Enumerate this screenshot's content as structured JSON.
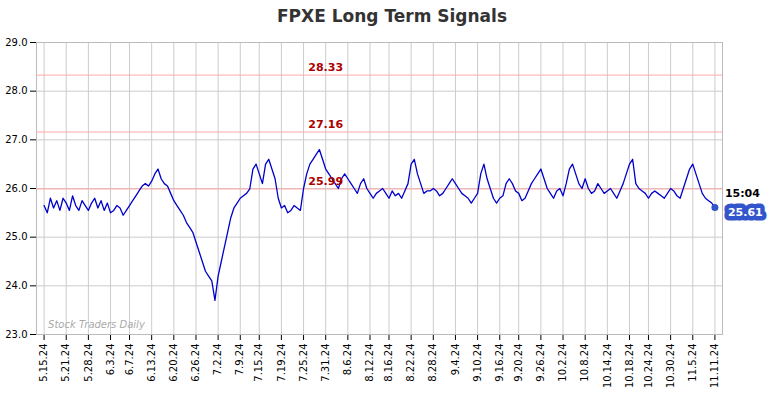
{
  "chart_data": {
    "type": "line",
    "title": "FPXE Long Term Signals",
    "categories": [
      "5.15.24",
      null,
      null,
      null,
      null,
      null,
      null,
      "5.21.24",
      null,
      null,
      null,
      null,
      null,
      null,
      "5.28.24",
      null,
      null,
      null,
      null,
      null,
      null,
      "6.3.24",
      null,
      null,
      null,
      null,
      null,
      "6.7.24",
      null,
      null,
      null,
      null,
      null,
      null,
      "6.13.24",
      null,
      null,
      null,
      null,
      null,
      null,
      "6.20.24",
      null,
      null,
      null,
      null,
      null,
      null,
      "6.26.24",
      null,
      null,
      null,
      null,
      null,
      null,
      "7.2.24",
      null,
      null,
      null,
      null,
      null,
      null,
      "7.9.24",
      null,
      null,
      null,
      null,
      null,
      "7.15.24",
      null,
      null,
      null,
      null,
      null,
      null,
      "7.19.24",
      null,
      null,
      null,
      null,
      null,
      null,
      "7.25.24",
      null,
      null,
      null,
      null,
      null,
      null,
      "7.31.24",
      null,
      null,
      null,
      null,
      null,
      null,
      "8.6.24",
      null,
      null,
      null,
      null,
      null,
      null,
      "8.12.24",
      null,
      null,
      null,
      null,
      null,
      "8.16.24",
      null,
      null,
      null,
      null,
      null,
      null,
      "8.22.24",
      null,
      null,
      null,
      null,
      null,
      null,
      "8.28.24",
      null,
      null,
      null,
      null,
      null,
      null,
      "9.4.24",
      null,
      null,
      null,
      null,
      null,
      null,
      "9.10.24",
      null,
      null,
      null,
      null,
      null,
      null,
      "9.16.24",
      null,
      null,
      null,
      null,
      null,
      "9.20.24",
      null,
      null,
      null,
      null,
      null,
      null,
      "9.26.24",
      null,
      null,
      null,
      null,
      null,
      null,
      "10.2.24",
      null,
      null,
      null,
      null,
      null,
      null,
      "10.8.24",
      null,
      null,
      null,
      null,
      null,
      null,
      "10.14.24",
      null,
      null,
      null,
      null,
      null,
      null,
      "10.18.24",
      null,
      null,
      null,
      null,
      null,
      "10.24.24",
      null,
      null,
      null,
      null,
      null,
      null,
      "10.30.24",
      null,
      null,
      null,
      null,
      null,
      null,
      "11.5.24",
      null,
      null,
      null,
      null,
      null,
      null,
      "11.11.24"
    ],
    "values": [
      25.65,
      25.5,
      25.8,
      25.6,
      25.75,
      25.55,
      25.8,
      25.7,
      25.55,
      25.85,
      25.65,
      25.55,
      25.75,
      25.65,
      25.55,
      25.7,
      25.8,
      25.6,
      25.75,
      25.55,
      25.7,
      25.5,
      25.55,
      25.65,
      25.6,
      25.45,
      25.55,
      25.65,
      25.75,
      25.85,
      25.95,
      26.05,
      26.1,
      26.05,
      26.15,
      26.3,
      26.4,
      26.2,
      26.1,
      26.05,
      25.9,
      25.75,
      25.65,
      25.55,
      25.45,
      25.3,
      25.2,
      25.1,
      24.9,
      24.7,
      24.5,
      24.3,
      24.2,
      24.1,
      23.7,
      24.2,
      24.5,
      24.8,
      25.1,
      25.4,
      25.6,
      25.7,
      25.8,
      25.85,
      25.9,
      25.99,
      26.4,
      26.5,
      26.3,
      26.1,
      26.5,
      26.6,
      26.4,
      26.2,
      25.8,
      25.6,
      25.65,
      25.5,
      25.55,
      25.65,
      25.6,
      25.55,
      26.0,
      26.3,
      26.5,
      26.6,
      26.7,
      26.8,
      26.6,
      26.4,
      26.3,
      26.2,
      26.1,
      26.0,
      26.2,
      26.3,
      26.2,
      26.1,
      26.0,
      25.9,
      26.1,
      26.2,
      26.0,
      25.9,
      25.8,
      25.9,
      25.95,
      26.0,
      25.9,
      25.8,
      25.95,
      25.85,
      25.9,
      25.8,
      25.95,
      26.1,
      26.5,
      26.6,
      26.3,
      26.1,
      25.9,
      25.95,
      25.95,
      26.0,
      25.95,
      25.85,
      25.9,
      26.0,
      26.1,
      26.2,
      26.1,
      26.0,
      25.9,
      25.85,
      25.8,
      25.7,
      25.8,
      25.9,
      26.3,
      26.5,
      26.2,
      26.0,
      25.8,
      25.7,
      25.8,
      25.85,
      26.1,
      26.2,
      26.1,
      25.95,
      25.9,
      25.75,
      25.8,
      25.95,
      26.1,
      26.2,
      26.3,
      26.4,
      26.2,
      26.0,
      25.9,
      25.8,
      25.95,
      26.0,
      25.85,
      26.1,
      26.4,
      26.5,
      26.3,
      26.1,
      26.0,
      26.2,
      26.0,
      25.9,
      25.95,
      26.1,
      26.0,
      25.9,
      25.95,
      26.0,
      25.9,
      25.8,
      25.95,
      26.1,
      26.3,
      26.5,
      26.6,
      26.1,
      26.0,
      25.95,
      25.9,
      25.8,
      25.9,
      25.95,
      25.9,
      25.85,
      25.8,
      25.9,
      26.0,
      25.95,
      25.85,
      25.8,
      26.0,
      26.2,
      26.4,
      26.5,
      26.3,
      26.1,
      25.9,
      25.8,
      25.75,
      25.7,
      25.61
    ],
    "color": "#0000cc",
    "ylim": [
      23,
      29
    ],
    "yticks": [
      23,
      24,
      25,
      26,
      27,
      28,
      29
    ],
    "grid": true,
    "hlines": [
      28.33,
      27.16,
      25.99
    ],
    "hline_color": "#ffaaaa",
    "hline_label_color": "#aa0000",
    "watermark": "Stock Traders Daily",
    "last_label": {
      "time": "15:04",
      "value": 25.61,
      "color": "#3355cc"
    }
  }
}
